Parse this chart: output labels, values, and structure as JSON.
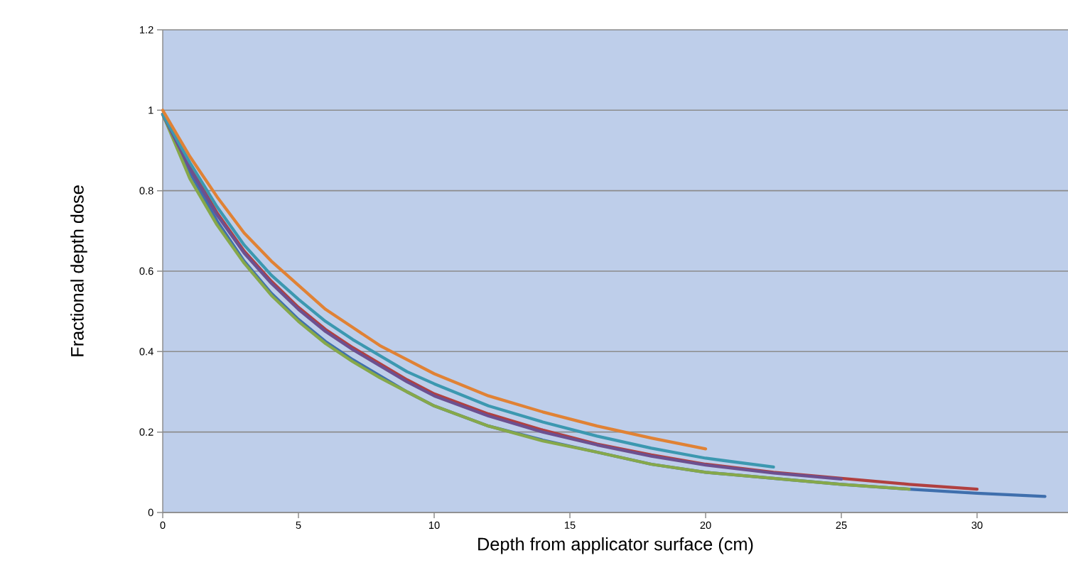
{
  "chart_data": {
    "type": "line",
    "xlabel": "Depth from applicator surface (cm)",
    "ylabel": "Fractional depth dose",
    "xlim": [
      0,
      33.35
    ],
    "ylim": [
      0,
      1.2
    ],
    "xticks": [
      0,
      5,
      10,
      15,
      20,
      25,
      30
    ],
    "yticks": [
      0,
      0.2,
      0.4,
      0.6,
      0.8,
      1,
      1.2
    ],
    "grid": "y",
    "marker": "none",
    "line_style": "solid",
    "series": [
      {
        "color": "#3f6fad",
        "x": [
          0,
          1,
          2,
          3,
          4,
          5,
          6,
          7,
          8,
          9,
          10,
          12,
          14,
          16,
          18,
          20,
          22.5,
          25,
          27.5,
          30,
          32.5
        ],
        "values": [
          0.99,
          0.845,
          0.725,
          0.625,
          0.545,
          0.48,
          0.425,
          0.38,
          0.34,
          0.3,
          0.265,
          0.215,
          0.18,
          0.15,
          0.12,
          0.1,
          0.085,
          0.07,
          0.058,
          0.048,
          0.04
        ]
      },
      {
        "color": "#b04040",
        "x": [
          0,
          1,
          2,
          3,
          4,
          5,
          6,
          7,
          8,
          9,
          10,
          12,
          14,
          16,
          18,
          20,
          22.5,
          25,
          27.5,
          30
        ],
        "values": [
          0.99,
          0.86,
          0.745,
          0.65,
          0.575,
          0.51,
          0.455,
          0.41,
          0.37,
          0.33,
          0.295,
          0.245,
          0.205,
          0.17,
          0.143,
          0.12,
          0.1,
          0.085,
          0.07,
          0.058
        ]
      },
      {
        "color": "#86a84a",
        "x": [
          0,
          1,
          2,
          3,
          4,
          5,
          6,
          7,
          8,
          9,
          10,
          12,
          14,
          16,
          18,
          20,
          22.5,
          25,
          27.5
        ],
        "values": [
          0.99,
          0.83,
          0.715,
          0.62,
          0.54,
          0.475,
          0.42,
          0.375,
          0.335,
          0.3,
          0.265,
          0.215,
          0.178,
          0.15,
          0.12,
          0.1,
          0.085,
          0.07,
          0.058
        ]
      },
      {
        "color": "#6c5090",
        "x": [
          0,
          1,
          2,
          3,
          4,
          5,
          6,
          7,
          8,
          9,
          10,
          12,
          14,
          16,
          18,
          20,
          22.5,
          25
        ],
        "values": [
          0.99,
          0.855,
          0.74,
          0.645,
          0.57,
          0.505,
          0.45,
          0.405,
          0.365,
          0.325,
          0.29,
          0.24,
          0.2,
          0.168,
          0.14,
          0.118,
          0.098,
          0.083
        ]
      },
      {
        "color": "#3c98b0",
        "x": [
          0,
          1,
          2,
          3,
          4,
          5,
          6,
          7,
          8,
          9,
          10,
          12,
          14,
          16,
          18,
          20,
          22.5
        ],
        "values": [
          0.99,
          0.87,
          0.76,
          0.665,
          0.59,
          0.53,
          0.475,
          0.43,
          0.39,
          0.35,
          0.32,
          0.265,
          0.225,
          0.19,
          0.16,
          0.135,
          0.113
        ]
      },
      {
        "color": "#e08235",
        "x": [
          0,
          1,
          2,
          3,
          4,
          5,
          6,
          7,
          8,
          9,
          10,
          12,
          14,
          16,
          18,
          20
        ],
        "values": [
          1,
          0.885,
          0.785,
          0.695,
          0.625,
          0.565,
          0.505,
          0.46,
          0.415,
          0.38,
          0.345,
          0.29,
          0.25,
          0.215,
          0.185,
          0.158
        ]
      }
    ]
  }
}
